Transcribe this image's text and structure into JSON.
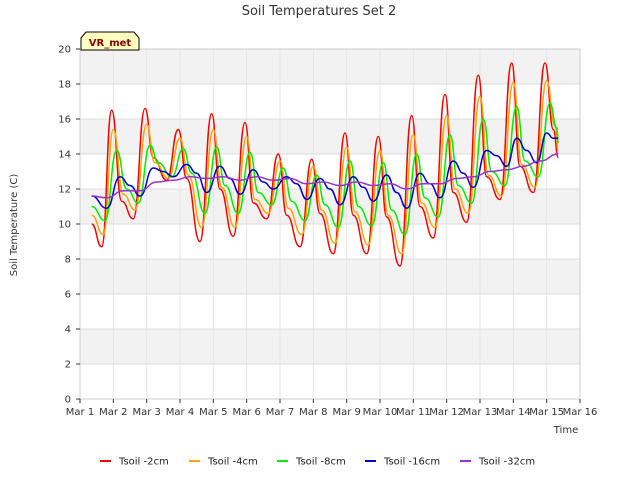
{
  "chart_data": {
    "type": "line",
    "title": "Soil Temperatures Set 2",
    "xlabel": "Time",
    "ylabel": "Soil Temperature (C)",
    "badge": "VR_met",
    "xlim": [
      1,
      16
    ],
    "ylim": [
      0,
      20
    ],
    "x_ticks": [
      "Mar 1",
      "Mar 2",
      "Mar 3",
      "Mar 4",
      "Mar 5",
      "Mar 6",
      "Mar 7",
      "Mar 8",
      "Mar 9",
      "Mar 10",
      "Mar 11",
      "Mar 12",
      "Mar 13",
      "Mar 14",
      "Mar 15",
      "Mar 16"
    ],
    "y_ticks": [
      0,
      2,
      4,
      6,
      8,
      10,
      12,
      14,
      16,
      18,
      20
    ],
    "grid": true,
    "legend_position": "bottom",
    "x_units": "day of March",
    "series": [
      {
        "name": "Tsoil -2cm",
        "color": "#ff0000",
        "x": [
          1.35,
          1.65,
          1.95,
          2.25,
          2.6,
          2.95,
          3.2,
          3.6,
          3.95,
          4.2,
          4.6,
          4.95,
          5.2,
          5.6,
          5.95,
          6.2,
          6.6,
          6.95,
          7.2,
          7.6,
          7.95,
          8.2,
          8.6,
          8.95,
          9.2,
          9.6,
          9.95,
          10.2,
          10.6,
          10.95,
          11.2,
          11.6,
          11.95,
          12.2,
          12.6,
          12.95,
          13.2,
          13.6,
          13.95,
          14.2,
          14.6,
          14.95,
          15.2,
          15.35
        ],
        "y": [
          10.0,
          8.7,
          16.5,
          11.3,
          10.3,
          16.6,
          13.8,
          12.5,
          15.4,
          12.6,
          9.0,
          16.3,
          12.0,
          9.3,
          15.8,
          11.2,
          10.3,
          14.0,
          10.5,
          8.7,
          13.7,
          10.6,
          8.3,
          15.2,
          10.5,
          8.3,
          15.0,
          10.4,
          7.6,
          16.2,
          11.0,
          9.2,
          17.4,
          11.8,
          10.1,
          18.5,
          12.7,
          11.4,
          19.2,
          13.3,
          11.8,
          19.2,
          15.4,
          13.8
        ]
      },
      {
        "name": "Tsoil -4cm",
        "color": "#ffa500",
        "x": [
          1.35,
          1.7,
          2.0,
          2.3,
          2.65,
          3.0,
          3.25,
          3.65,
          4.0,
          4.25,
          4.65,
          5.0,
          5.25,
          5.65,
          6.0,
          6.25,
          6.65,
          7.0,
          7.25,
          7.65,
          8.0,
          8.25,
          8.65,
          9.0,
          9.25,
          9.65,
          10.0,
          10.25,
          10.65,
          11.0,
          11.25,
          11.65,
          12.0,
          12.25,
          12.65,
          13.0,
          13.25,
          13.65,
          14.0,
          14.25,
          14.65,
          15.0,
          15.25,
          15.35
        ],
        "y": [
          10.5,
          9.4,
          15.4,
          11.7,
          10.8,
          15.7,
          13.5,
          12.6,
          14.9,
          12.8,
          9.8,
          15.4,
          12.1,
          9.8,
          15.0,
          11.4,
          10.6,
          13.6,
          10.9,
          9.4,
          13.3,
          10.8,
          8.9,
          14.4,
          10.7,
          8.8,
          14.2,
          10.5,
          8.3,
          15.1,
          11.2,
          9.8,
          16.2,
          12.0,
          10.6,
          17.3,
          12.8,
          11.6,
          18.1,
          13.4,
          12.1,
          18.2,
          15.6,
          14.2
        ]
      },
      {
        "name": "Tsoil -8cm",
        "color": "#00ee00",
        "x": [
          1.35,
          1.75,
          2.1,
          2.4,
          2.75,
          3.1,
          3.35,
          3.75,
          4.1,
          4.35,
          4.75,
          5.1,
          5.35,
          5.75,
          6.1,
          6.35,
          6.75,
          7.1,
          7.35,
          7.75,
          8.1,
          8.35,
          8.75,
          9.1,
          9.35,
          9.75,
          10.1,
          10.35,
          10.75,
          11.1,
          11.35,
          11.75,
          12.1,
          12.35,
          12.75,
          13.1,
          13.35,
          13.75,
          14.1,
          14.35,
          14.75,
          15.1,
          15.3,
          15.35
        ],
        "y": [
          11.0,
          10.2,
          14.2,
          12.0,
          11.2,
          14.5,
          13.5,
          12.7,
          14.3,
          12.9,
          10.6,
          14.4,
          12.2,
          10.6,
          14.1,
          11.8,
          11.1,
          13.2,
          11.3,
          10.2,
          12.8,
          11.1,
          9.8,
          13.6,
          11.0,
          9.9,
          13.5,
          10.8,
          9.4,
          14.0,
          11.5,
          10.4,
          15.1,
          12.2,
          11.2,
          16.0,
          13.0,
          12.2,
          16.7,
          13.6,
          12.7,
          16.9,
          15.5,
          14.6
        ]
      },
      {
        "name": "Tsoil -16cm",
        "color": "#0000cc",
        "x": [
          1.35,
          1.8,
          2.2,
          2.5,
          2.8,
          3.2,
          3.5,
          3.8,
          4.2,
          4.5,
          4.8,
          5.2,
          5.5,
          5.8,
          6.2,
          6.5,
          6.8,
          7.2,
          7.5,
          7.8,
          8.2,
          8.5,
          8.8,
          9.2,
          9.5,
          9.8,
          10.2,
          10.5,
          10.8,
          11.2,
          11.5,
          11.8,
          12.2,
          12.5,
          12.8,
          13.2,
          13.5,
          13.8,
          14.1,
          14.4,
          14.7,
          15.0,
          15.2,
          15.35
        ],
        "y": [
          11.6,
          10.9,
          12.7,
          12.2,
          11.6,
          13.2,
          13.0,
          12.7,
          13.4,
          12.9,
          11.8,
          13.3,
          12.6,
          11.7,
          13.1,
          12.4,
          12.0,
          12.7,
          12.3,
          11.4,
          12.6,
          12.0,
          11.1,
          12.7,
          12.1,
          11.3,
          12.8,
          11.8,
          10.9,
          12.9,
          12.3,
          11.5,
          13.6,
          12.9,
          12.1,
          14.2,
          13.9,
          13.3,
          14.9,
          14.2,
          13.5,
          15.2,
          14.9,
          14.9
        ]
      },
      {
        "name": "Tsoil -32cm",
        "color": "#9933cc",
        "x": [
          1.35,
          1.8,
          2.3,
          2.8,
          3.3,
          3.8,
          4.3,
          4.8,
          5.3,
          5.8,
          6.3,
          6.8,
          7.3,
          7.8,
          8.3,
          8.8,
          9.3,
          9.8,
          10.3,
          10.8,
          11.3,
          11.8,
          12.3,
          12.8,
          13.3,
          13.8,
          14.3,
          14.8,
          15.35
        ],
        "y": [
          11.6,
          11.5,
          11.9,
          11.9,
          12.4,
          12.5,
          12.7,
          12.6,
          12.7,
          12.5,
          12.7,
          12.5,
          12.6,
          12.3,
          12.4,
          12.2,
          12.4,
          12.2,
          12.3,
          12.0,
          12.3,
          12.3,
          12.6,
          12.7,
          13.0,
          13.1,
          13.3,
          13.6,
          14.0
        ]
      }
    ]
  }
}
